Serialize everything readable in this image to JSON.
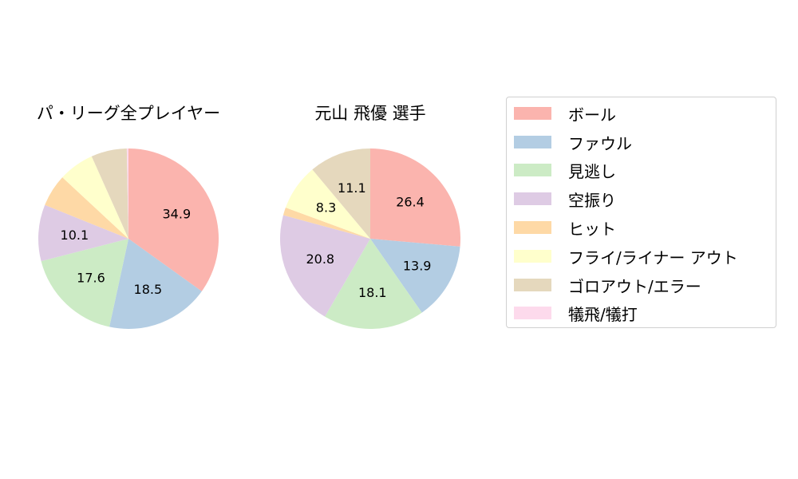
{
  "chart_data": [
    {
      "type": "pie",
      "title": "パ・リーグ全プレイヤー",
      "categories": [
        "ボール",
        "ファウル",
        "見逃し",
        "空振り",
        "ヒット",
        "フライ/ライナー アウト",
        "ゴロアウト/エラー",
        "犠飛/犠打"
      ],
      "values": [
        34.9,
        18.5,
        17.6,
        10.1,
        5.8,
        6.4,
        6.4,
        0.3
      ],
      "labels_shown": [
        "34.9",
        "18.5",
        "17.6",
        "10.1",
        "",
        "",
        "",
        ""
      ],
      "start_angle": 90,
      "direction": "clockwise"
    },
    {
      "type": "pie",
      "title": "元山 飛優  選手",
      "categories": [
        "ボール",
        "ファウル",
        "見逃し",
        "空振り",
        "ヒット",
        "フライ/ライナー アウト",
        "ゴロアウト/エラー",
        "犠飛/犠打"
      ],
      "values": [
        26.4,
        13.9,
        18.1,
        20.8,
        1.4,
        8.3,
        11.1,
        0.0
      ],
      "labels_shown": [
        "26.4",
        "13.9",
        "18.1",
        "20.8",
        "",
        "8.3",
        "11.1",
        ""
      ],
      "start_angle": 90,
      "direction": "clockwise"
    }
  ],
  "legend": {
    "position": "right",
    "items": [
      {
        "label": "ボール",
        "color": "#fbb4ae"
      },
      {
        "label": "ファウル",
        "color": "#b3cde3"
      },
      {
        "label": "見逃し",
        "color": "#ccebc5"
      },
      {
        "label": "空振り",
        "color": "#decbe4"
      },
      {
        "label": "ヒット",
        "color": "#fed9a6"
      },
      {
        "label": "フライ/ライナー アウト",
        "color": "#ffffcc"
      },
      {
        "label": "ゴロアウト/エラー",
        "color": "#e5d8bd"
      },
      {
        "label": "犠飛/犠打",
        "color": "#fddaec"
      }
    ]
  }
}
